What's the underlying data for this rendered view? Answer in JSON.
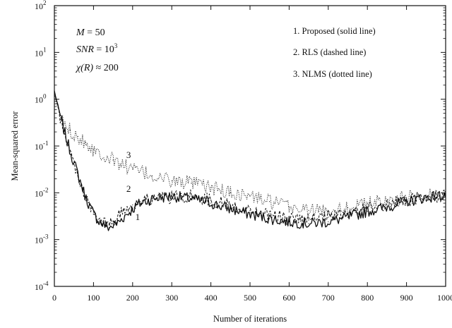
{
  "chart_data": {
    "type": "line",
    "title": "",
    "xlabel": "Number of iterations",
    "ylabel": "Mean-squared error",
    "xlim": [
      0,
      1000
    ],
    "ylim": [
      0.0001,
      100
    ],
    "y_scale": "log",
    "x_ticks": [
      0,
      100,
      200,
      300,
      400,
      500,
      600,
      700,
      800,
      900,
      1000
    ],
    "y_ticks": [
      {
        "value": 0.0001,
        "base": "10",
        "exp": "-4"
      },
      {
        "value": 0.001,
        "base": "10",
        "exp": "-3"
      },
      {
        "value": 0.01,
        "base": "10",
        "exp": "-2"
      },
      {
        "value": 0.1,
        "base": "10",
        "exp": "-1"
      },
      {
        "value": 1,
        "base": "10",
        "exp": "0"
      },
      {
        "value": 10,
        "base": "10",
        "exp": "1"
      },
      {
        "value": 100,
        "base": "10",
        "exp": "2"
      }
    ],
    "grid": false,
    "parameters": [
      {
        "lhs": "M",
        "rhs": " = 50",
        "sup": ""
      },
      {
        "lhs": "SNR",
        "rhs": " = 10",
        "sup": "3"
      },
      {
        "lhs": "χ(R)",
        "rhs": " ≈ 200",
        "sup": ""
      }
    ],
    "legend_position": "top-right",
    "legend": [
      "1. Proposed (solid line)",
      "2. RLS (dashed line)",
      "3. NLMS (dotted line)"
    ],
    "series": [
      {
        "name": "1. Proposed (solid line)",
        "label": "1",
        "style": "solid",
        "x": [
          0,
          20,
          40,
          60,
          80,
          100,
          120,
          140,
          160,
          180,
          200,
          220,
          250,
          300,
          350,
          400,
          450,
          500,
          550,
          600,
          650,
          700,
          750,
          800,
          850,
          900,
          950,
          1000
        ],
        "y": [
          1.5,
          0.3,
          0.08,
          0.025,
          0.008,
          0.0035,
          0.0022,
          0.0018,
          0.0022,
          0.0032,
          0.0045,
          0.006,
          0.0075,
          0.0085,
          0.0075,
          0.006,
          0.0045,
          0.0035,
          0.0028,
          0.0024,
          0.0022,
          0.0024,
          0.003,
          0.004,
          0.005,
          0.0065,
          0.008,
          0.009
        ]
      },
      {
        "name": "2. RLS (dashed line)",
        "label": "2",
        "style": "dashed",
        "x": [
          0,
          20,
          40,
          60,
          80,
          100,
          120,
          140,
          160,
          180,
          200,
          220,
          250,
          300,
          350,
          400,
          450,
          500,
          550,
          600,
          650,
          700,
          750,
          800,
          850,
          900,
          950,
          1000
        ],
        "y": [
          1.4,
          0.28,
          0.075,
          0.024,
          0.008,
          0.0035,
          0.0023,
          0.0021,
          0.0028,
          0.0045,
          0.0055,
          0.0065,
          0.0075,
          0.008,
          0.0085,
          0.007,
          0.0055,
          0.0042,
          0.0033,
          0.0028,
          0.0026,
          0.003,
          0.0037,
          0.0047,
          0.0057,
          0.0068,
          0.008,
          0.009
        ]
      },
      {
        "name": "3. NLMS (dotted line)",
        "label": "3",
        "style": "dotted",
        "x": [
          0,
          20,
          40,
          60,
          80,
          100,
          150,
          200,
          250,
          300,
          350,
          400,
          450,
          500,
          550,
          600,
          650,
          700,
          750,
          800,
          850,
          900,
          950,
          1000
        ],
        "y": [
          1.2,
          0.35,
          0.22,
          0.16,
          0.12,
          0.085,
          0.05,
          0.032,
          0.023,
          0.018,
          0.016,
          0.013,
          0.01,
          0.0085,
          0.0065,
          0.005,
          0.0042,
          0.0042,
          0.0048,
          0.0058,
          0.0068,
          0.0078,
          0.0088,
          0.0095
        ]
      }
    ]
  }
}
